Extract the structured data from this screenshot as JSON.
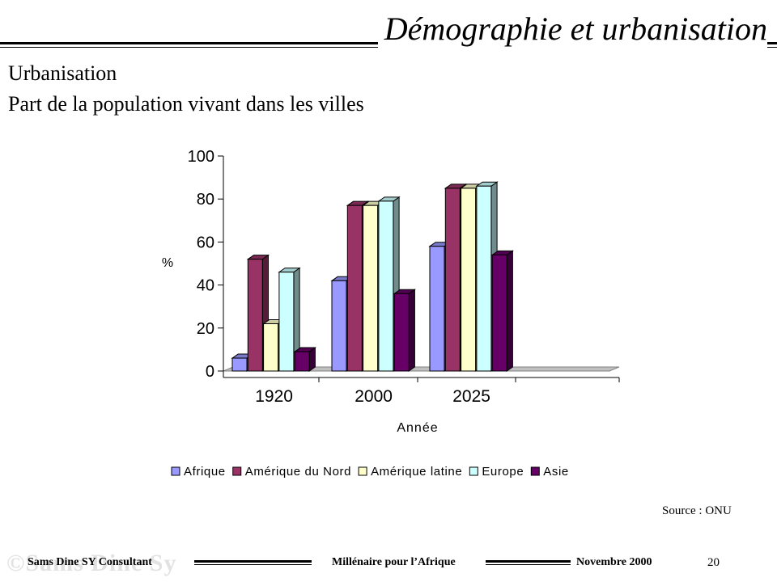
{
  "header": {
    "title": "Démographie et urbanisation"
  },
  "subtitle": {
    "line1": "Urbanisation",
    "line2": "Part de la population vivant dans les villes"
  },
  "chart_data": {
    "type": "bar",
    "style": "3d-clustered-column",
    "title": "",
    "xlabel": "Année",
    "ylabel": "%",
    "categories": [
      "1920",
      "2000",
      "2025"
    ],
    "ylim": [
      0,
      100
    ],
    "yticks": [
      0,
      20,
      40,
      60,
      80,
      100
    ],
    "grid": false,
    "legend_position": "bottom",
    "series": [
      {
        "name": "Afrique",
        "color": "#9999ff",
        "values": [
          6,
          42,
          58
        ]
      },
      {
        "name": "Amérique du Nord",
        "color": "#993366",
        "values": [
          52,
          77,
          85
        ]
      },
      {
        "name": "Amérique latine",
        "color": "#ffffcc",
        "values": [
          22,
          77,
          85
        ]
      },
      {
        "name": "Europe",
        "color": "#ccffff",
        "values": [
          46,
          79,
          86
        ]
      },
      {
        "name": "Asie",
        "color": "#660066",
        "values": [
          9,
          36,
          54
        ]
      }
    ]
  },
  "source": "Source : ONU",
  "footer": {
    "watermark": "©Sams Dine Sy",
    "left": "Sams Dine SY Consultant",
    "center": "Millénaire pour l’Afrique",
    "right": "Novembre 2000",
    "page": "20"
  }
}
